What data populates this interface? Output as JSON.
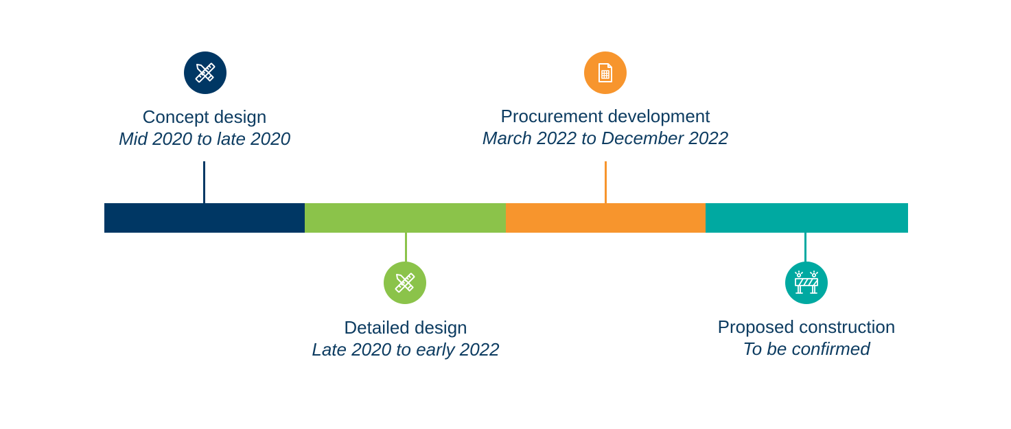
{
  "colors": {
    "navy": "#003764",
    "green": "#8bc34a",
    "orange": "#f7952d",
    "teal": "#00a9a1",
    "text": "#0d3c61"
  },
  "phases": [
    {
      "title": "Concept design",
      "dates": "Mid 2020 to late 2020",
      "icon": "design-tools-icon",
      "color": "#003764",
      "label_side": "above"
    },
    {
      "title": "Detailed design",
      "dates": "Late 2020 to early 2022",
      "icon": "design-tools-icon",
      "color": "#8bc34a",
      "label_side": "below"
    },
    {
      "title": "Procurement development",
      "dates": "March 2022 to December 2022",
      "icon": "document-icon",
      "color": "#f7952d",
      "label_side": "above"
    },
    {
      "title": "Proposed construction",
      "dates": "To be confirmed",
      "icon": "road-barrier-icon",
      "color": "#00a9a1",
      "label_side": "below"
    }
  ]
}
